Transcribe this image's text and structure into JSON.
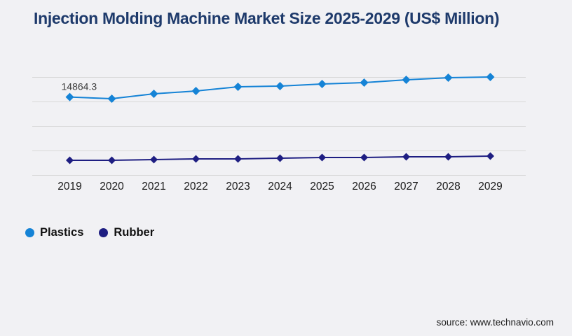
{
  "title": "Injection Molding Machine Market Size 2025-2029 (US$ Million)",
  "source": "source: www.technavio.com",
  "colors": {
    "background": "#f1f1f4",
    "title": "#1e3a6b",
    "gridline": "#d8d8d8",
    "axis_text": "#1a1a1a",
    "plastics": "#1583d6",
    "rubber": "#1e1e82"
  },
  "chart_data": {
    "type": "line",
    "title": "Injection Molding Machine Market Size 2025-2029 (US$ Million)",
    "categories": [
      "2019",
      "2020",
      "2021",
      "2022",
      "2023",
      "2024",
      "2025",
      "2026",
      "2027",
      "2028",
      "2029"
    ],
    "series": [
      {
        "name": "Plastics",
        "color": "#1583d6",
        "marker": "diamond",
        "values": [
          14864.3,
          14550,
          15480,
          16010,
          16810,
          16940,
          17340,
          17600,
          18140,
          18530,
          18670
        ]
      },
      {
        "name": "Rubber",
        "color": "#1e1e82",
        "marker": "diamond",
        "values": [
          2860,
          2860,
          2990,
          3120,
          3120,
          3260,
          3390,
          3390,
          3520,
          3520,
          3650
        ]
      }
    ],
    "annotations": [
      {
        "series": "Plastics",
        "category": "2019",
        "text": "14864.3"
      }
    ],
    "ylim": [
      0,
      18600
    ],
    "xlabel": "",
    "ylabel": "",
    "grid": "horizontal-only",
    "gridline_count": 5,
    "y_tick_labels_shown": false,
    "legend_position": "bottom-left"
  }
}
